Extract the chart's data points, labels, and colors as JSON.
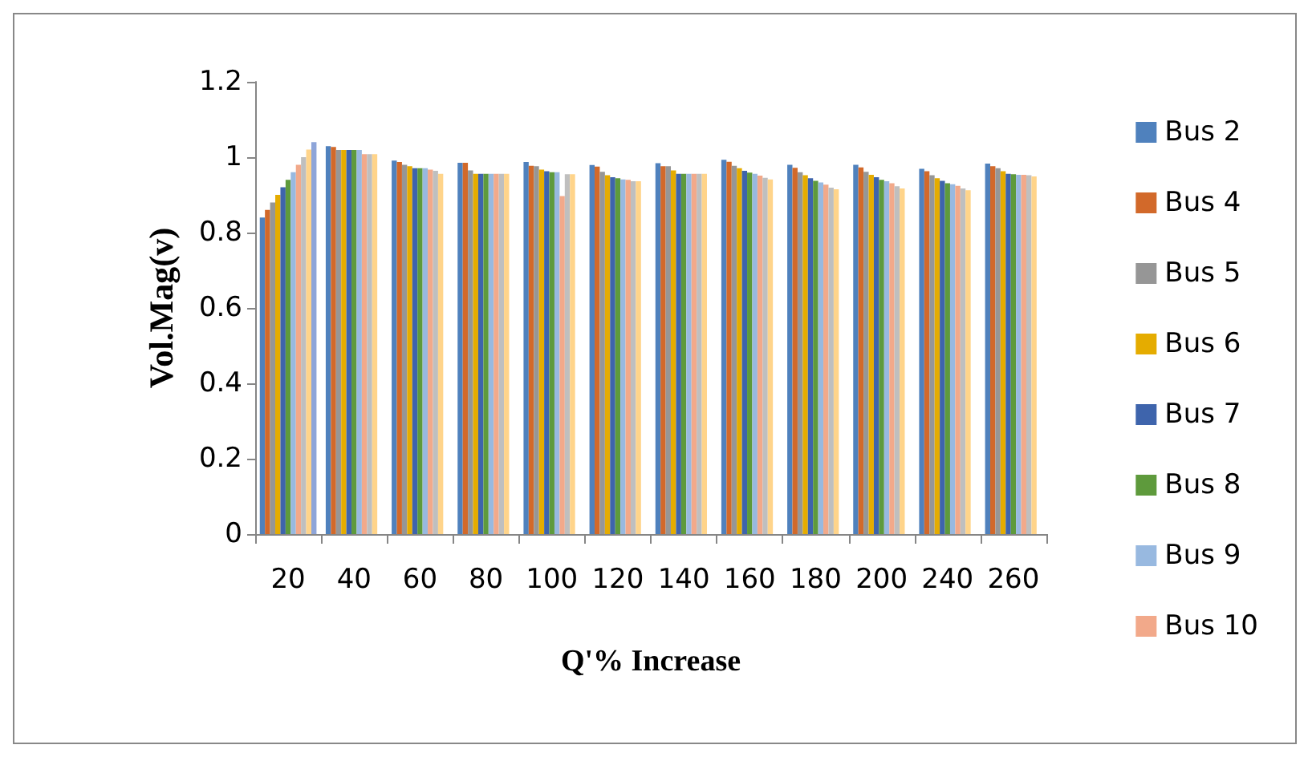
{
  "chart_data": {
    "type": "bar",
    "xlabel": "Q'% Increase",
    "ylabel": "Vol.Mag(v)",
    "categories": [
      "20",
      "40",
      "60",
      "80",
      "100",
      "120",
      "140",
      "160",
      "180",
      "200",
      "240",
      "260"
    ],
    "ylim": [
      0,
      1.2
    ],
    "yticks": [
      0,
      0.2,
      0.4,
      0.6,
      0.8,
      1,
      1.2
    ],
    "grid": false,
    "legend": "right",
    "series": [
      {
        "name": "Bus 2",
        "color": "#4f81bd",
        "values": [
          0.84,
          1.029,
          0.991,
          0.985,
          0.987,
          0.979,
          0.984,
          0.993,
          0.98,
          0.98,
          0.969,
          0.983
        ]
      },
      {
        "name": "Bus 4",
        "color": "#d2692a",
        "values": [
          0.86,
          1.027,
          0.987,
          0.985,
          0.977,
          0.975,
          0.976,
          0.988,
          0.972,
          0.973,
          0.963,
          0.976
        ]
      },
      {
        "name": "Bus 5",
        "color": "#969696",
        "values": [
          0.88,
          1.019,
          0.98,
          0.965,
          0.976,
          0.961,
          0.976,
          0.977,
          0.96,
          0.961,
          0.952,
          0.971
        ]
      },
      {
        "name": "Bus 6",
        "color": "#e5ac00",
        "values": [
          0.9,
          1.019,
          0.976,
          0.956,
          0.967,
          0.952,
          0.965,
          0.971,
          0.952,
          0.953,
          0.944,
          0.963
        ]
      },
      {
        "name": "Bus 7",
        "color": "#3e64ac",
        "values": [
          0.92,
          1.019,
          0.971,
          0.956,
          0.963,
          0.947,
          0.956,
          0.964,
          0.944,
          0.947,
          0.937,
          0.956
        ]
      },
      {
        "name": "Bus 8",
        "color": "#5e9a3c",
        "values": [
          0.94,
          1.019,
          0.971,
          0.956,
          0.96,
          0.944,
          0.956,
          0.959,
          0.937,
          0.94,
          0.931,
          0.955
        ]
      },
      {
        "name": "Bus 9",
        "color": "#98b9e0",
        "values": [
          0.96,
          1.019,
          0.971,
          0.956,
          0.96,
          0.941,
          0.956,
          0.956,
          0.933,
          0.936,
          0.928,
          0.953
        ]
      },
      {
        "name": "Bus 10",
        "color": "#f2a98a",
        "values": [
          0.98,
          1.008,
          0.967,
          0.956,
          0.897,
          0.94,
          0.956,
          0.951,
          0.927,
          0.931,
          0.924,
          0.953
        ]
      },
      {
        "color": "#bfbfbf",
        "values": [
          1.0,
          1.008,
          0.964,
          0.956,
          0.955,
          0.936,
          0.956,
          0.945,
          0.919,
          0.923,
          0.917,
          0.952
        ]
      },
      {
        "color": "#ffd48a",
        "values": [
          1.02,
          1.008,
          0.956,
          0.956,
          0.955,
          0.936,
          0.956,
          0.941,
          0.915,
          0.917,
          0.912,
          0.949
        ]
      },
      {
        "color": "#8ea5d9",
        "values": [
          1.04,
          null,
          null,
          null,
          null,
          null,
          null,
          null,
          null,
          null,
          null,
          null
        ]
      }
    ]
  }
}
